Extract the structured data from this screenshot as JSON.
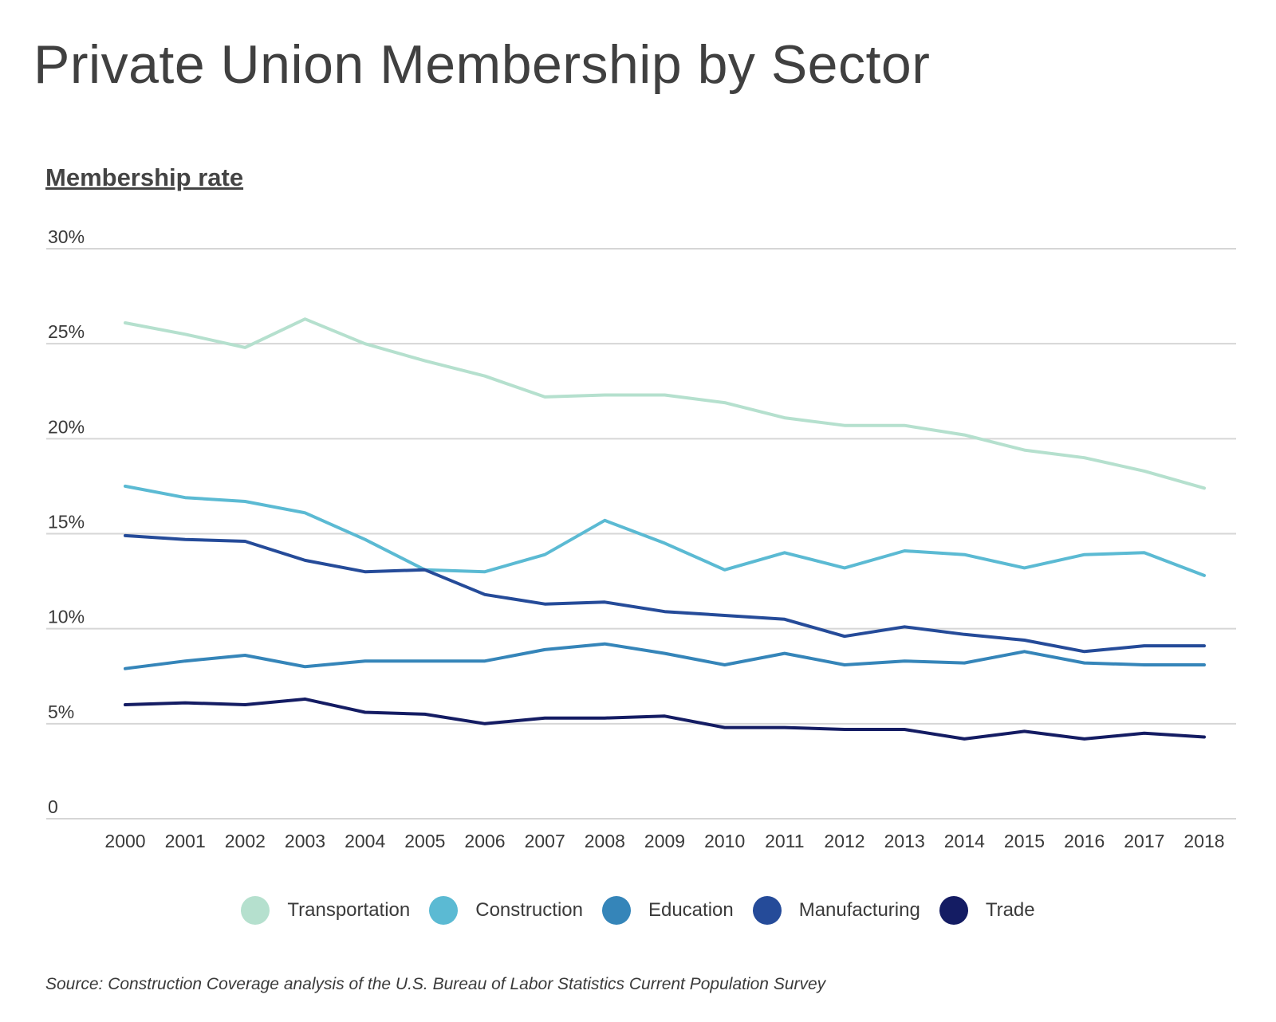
{
  "page": {
    "title": "Private Union Membership by Sector",
    "source": "Source: Construction Coverage analysis of the U.S. Bureau of Labor Statistics Current Population Survey"
  },
  "chart_data": {
    "type": "line",
    "title": "Private Union Membership by Sector",
    "ylabel": "Membership rate",
    "xlabel": "",
    "x": [
      2000,
      2001,
      2002,
      2003,
      2004,
      2005,
      2006,
      2007,
      2008,
      2009,
      2010,
      2011,
      2012,
      2013,
      2014,
      2015,
      2016,
      2017,
      2018
    ],
    "ylim": [
      0,
      30
    ],
    "y_ticks": [
      {
        "value": 0,
        "label": "0"
      },
      {
        "value": 5,
        "label": "5%"
      },
      {
        "value": 10,
        "label": "10%"
      },
      {
        "value": 15,
        "label": "15%"
      },
      {
        "value": 20,
        "label": "20%"
      },
      {
        "value": 25,
        "label": "25%"
      },
      {
        "value": 30,
        "label": "30%"
      }
    ],
    "grid": true,
    "legend_position": "bottom",
    "series": [
      {
        "name": "Transportation",
        "color": "#b5e0ce",
        "values": [
          26.1,
          25.5,
          24.8,
          26.3,
          25.0,
          24.1,
          23.3,
          22.2,
          22.3,
          22.3,
          21.9,
          21.1,
          20.7,
          20.7,
          20.2,
          19.4,
          19.0,
          18.3,
          17.4
        ]
      },
      {
        "name": "Construction",
        "color": "#5bbad3",
        "values": [
          17.5,
          16.9,
          16.7,
          16.1,
          14.7,
          13.1,
          13.0,
          13.9,
          15.7,
          14.5,
          13.1,
          14.0,
          13.2,
          14.1,
          13.9,
          13.2,
          13.9,
          14.0,
          12.8
        ]
      },
      {
        "name": "Education",
        "color": "#3585b9",
        "values": [
          7.9,
          8.3,
          8.6,
          8.0,
          8.3,
          8.3,
          8.3,
          8.9,
          9.2,
          8.7,
          8.1,
          8.7,
          8.1,
          8.3,
          8.2,
          8.8,
          8.2,
          8.1,
          8.1
        ]
      },
      {
        "name": "Manufacturing",
        "color": "#254b99",
        "values": [
          14.9,
          14.7,
          14.6,
          13.6,
          13.0,
          13.1,
          11.8,
          11.3,
          11.4,
          10.9,
          10.7,
          10.5,
          9.6,
          10.1,
          9.7,
          9.4,
          8.8,
          9.1,
          9.1
        ]
      },
      {
        "name": "Trade",
        "color": "#141c63",
        "values": [
          6.0,
          6.1,
          6.0,
          6.3,
          5.6,
          5.5,
          5.0,
          5.3,
          5.3,
          5.4,
          4.8,
          4.8,
          4.7,
          4.7,
          4.2,
          4.6,
          4.2,
          4.5,
          4.3
        ]
      }
    ]
  }
}
